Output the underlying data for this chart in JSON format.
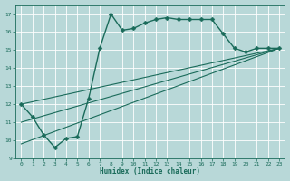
{
  "background_color": "#b8d8d8",
  "grid_color": "#ffffff",
  "line_color": "#1a6b5a",
  "xlabel": "Humidex (Indice chaleur)",
  "xlim": [
    -0.5,
    23.5
  ],
  "ylim": [
    9,
    17.5
  ],
  "yticks": [
    9,
    10,
    11,
    12,
    13,
    14,
    15,
    16,
    17
  ],
  "xticks": [
    0,
    1,
    2,
    3,
    4,
    5,
    6,
    7,
    8,
    9,
    10,
    11,
    12,
    13,
    14,
    15,
    16,
    17,
    18,
    19,
    20,
    21,
    22,
    23
  ],
  "series": [
    {
      "x": [
        0,
        1,
        2,
        3,
        4,
        5,
        6,
        7,
        8,
        9,
        10,
        11,
        12,
        13,
        14,
        15,
        16,
        17,
        18,
        19,
        20,
        21,
        22,
        23
      ],
      "y": [
        12.0,
        11.3,
        10.3,
        9.6,
        10.1,
        10.2,
        12.3,
        15.1,
        17.0,
        16.1,
        16.2,
        16.5,
        16.7,
        16.8,
        16.7,
        16.7,
        16.7,
        16.7,
        15.9,
        15.1,
        14.9,
        15.1,
        15.1,
        15.1
      ],
      "marker": "D",
      "markersize": 2.5,
      "linewidth": 1.0
    },
    {
      "x": [
        0,
        23
      ],
      "y": [
        12.0,
        15.1
      ],
      "marker": null,
      "linewidth": 0.8
    },
    {
      "x": [
        0,
        23
      ],
      "y": [
        11.0,
        15.1
      ],
      "marker": null,
      "linewidth": 0.8
    },
    {
      "x": [
        0,
        23
      ],
      "y": [
        9.8,
        15.1
      ],
      "marker": null,
      "linewidth": 0.8
    }
  ]
}
